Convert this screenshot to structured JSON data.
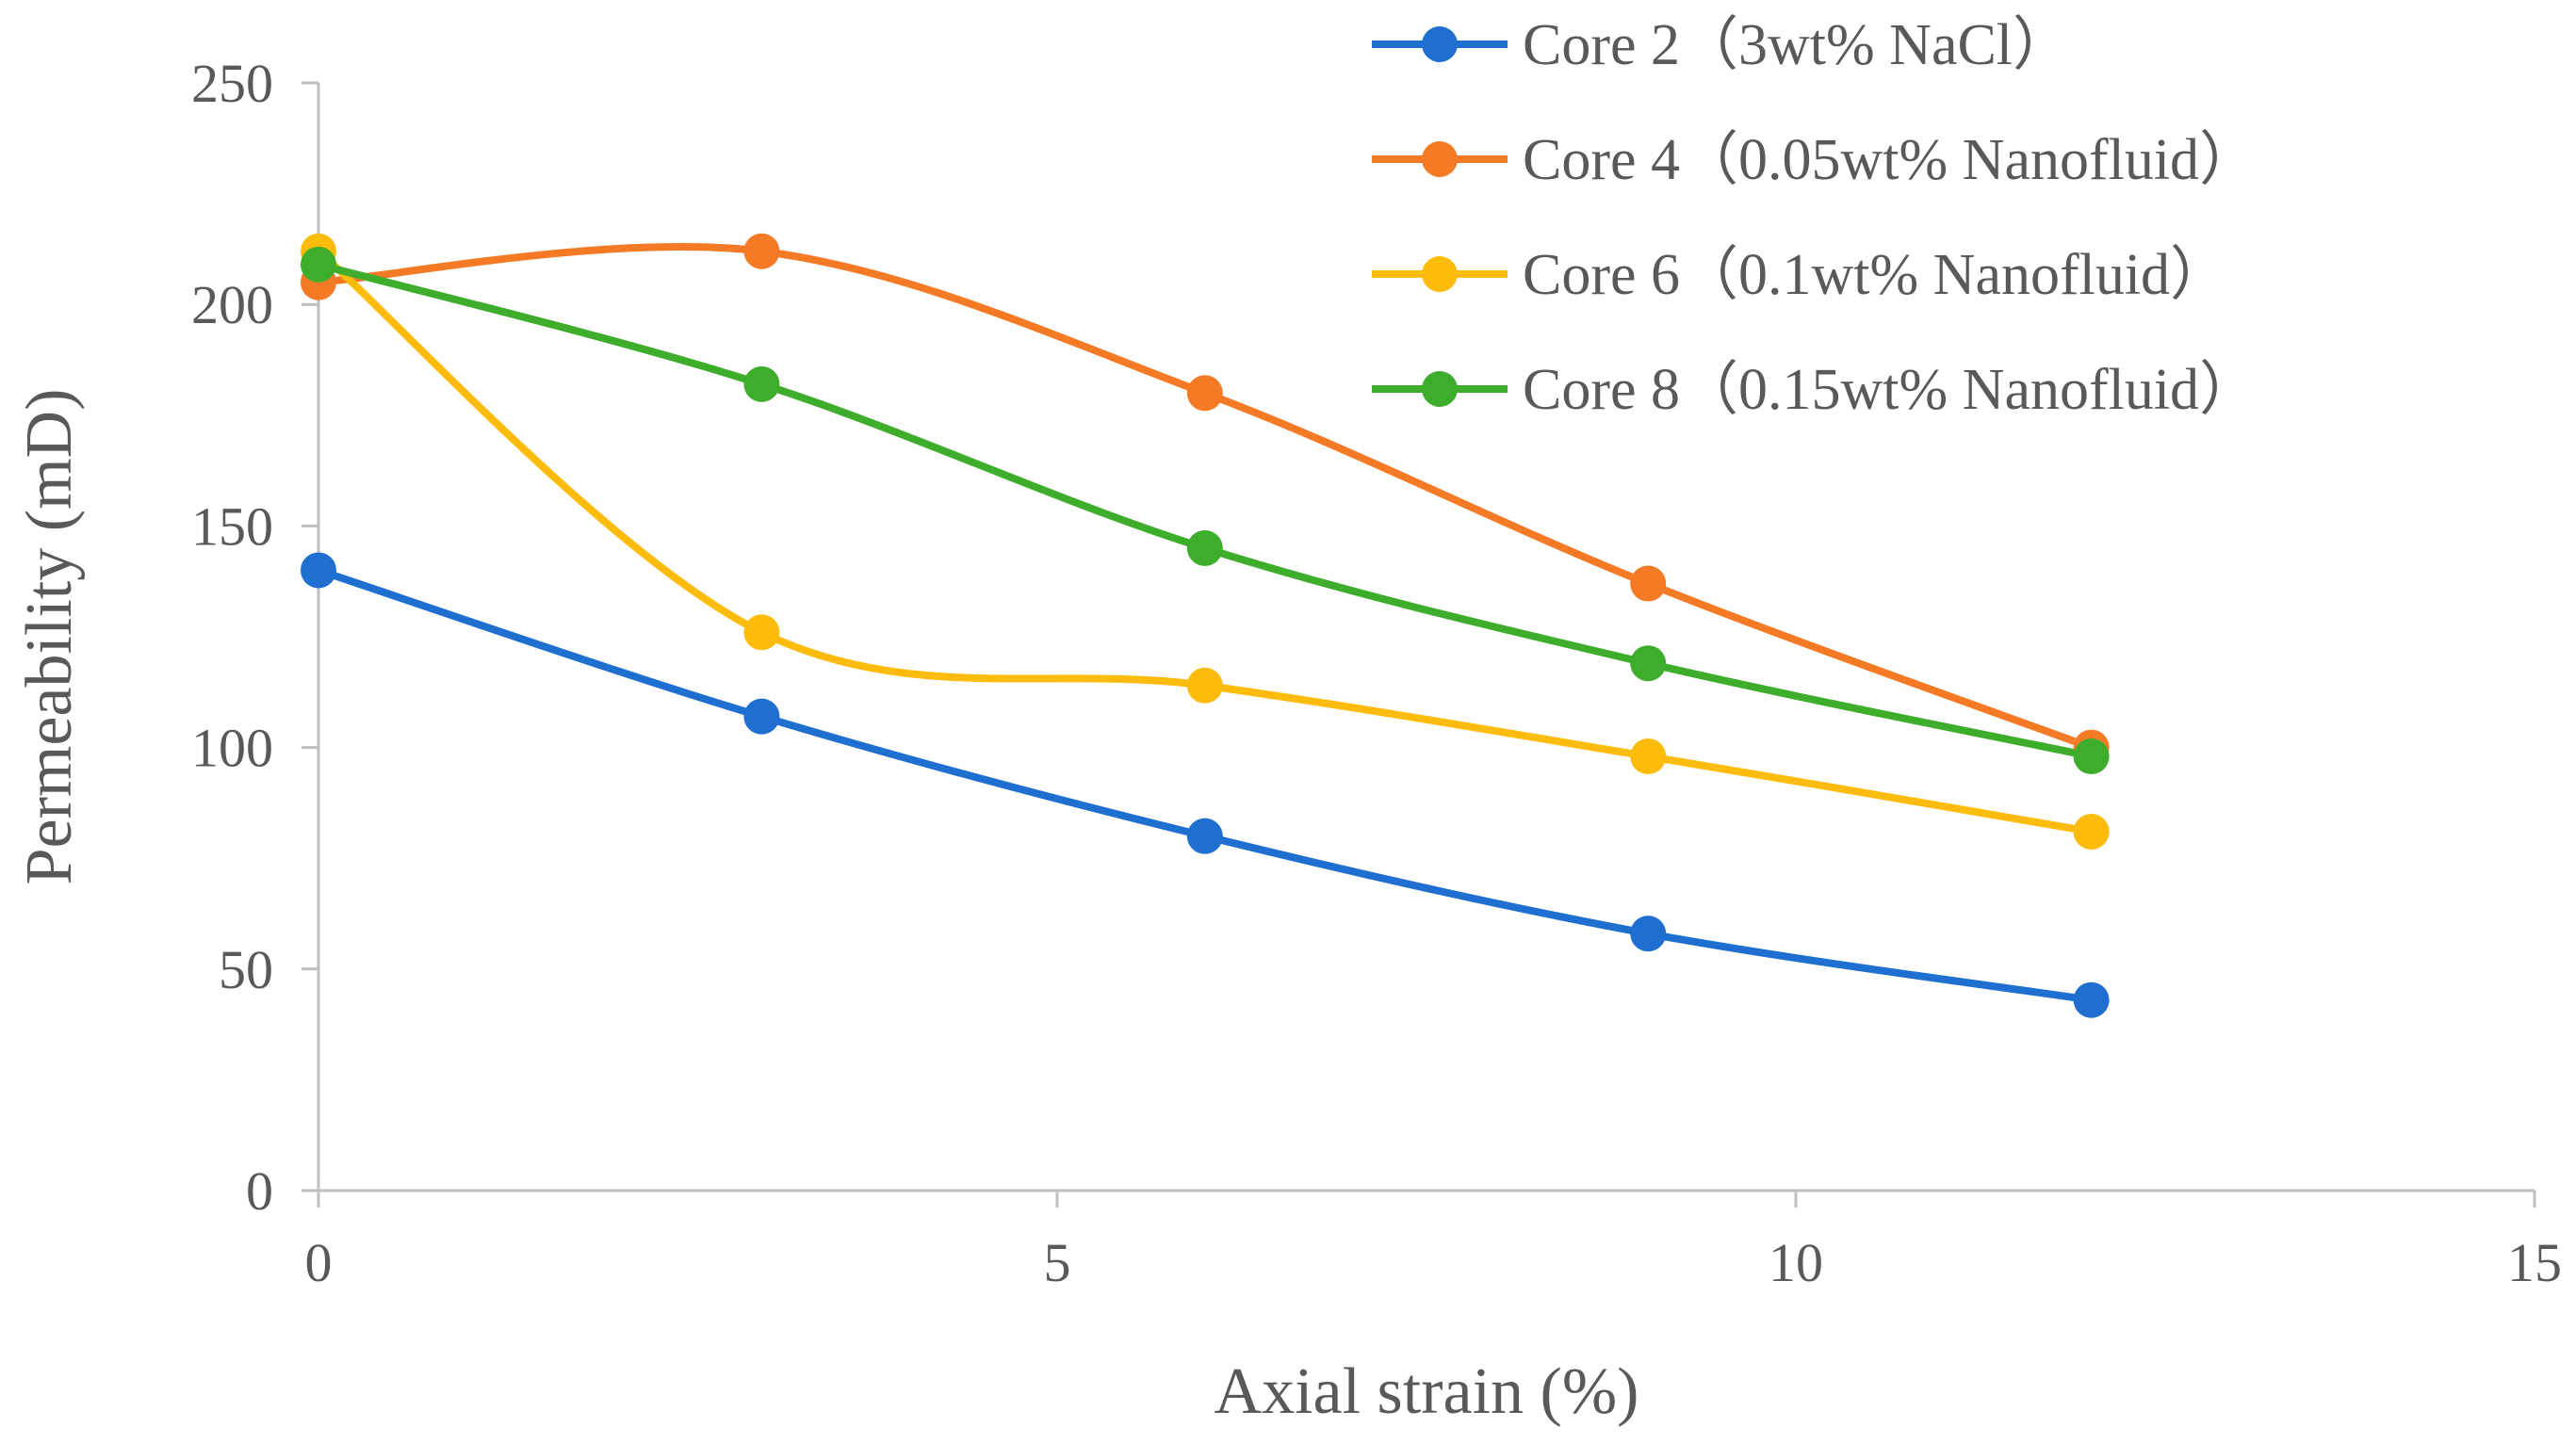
{
  "chart_data": {
    "type": "line",
    "smooth": true,
    "title": "",
    "xlabel": "Axial strain (%)",
    "ylabel": "Permeability (mD)",
    "xlim": [
      0,
      15
    ],
    "ylim": [
      0,
      250
    ],
    "x_ticks": [
      0,
      5,
      10,
      15
    ],
    "y_ticks": [
      0,
      50,
      100,
      150,
      200,
      250
    ],
    "x": [
      0,
      3,
      6,
      9,
      12
    ],
    "legend_position": "top-right",
    "grid": false,
    "series": [
      {
        "name": "Core 2（3wt% NaCl）",
        "color": "#1f6fd1",
        "values": [
          140,
          107,
          80,
          58,
          43
        ]
      },
      {
        "name": "Core 4（0.05wt% Nanofluid）",
        "color": "#f47a25",
        "values": [
          205,
          212,
          180,
          137,
          100
        ]
      },
      {
        "name": "Core 6（0.1wt% Nanofluid）",
        "color": "#fdbb0c",
        "values": [
          212,
          126,
          114,
          98,
          81
        ]
      },
      {
        "name": "Core 8（0.15wt% Nanofluid）",
        "color": "#3fad2c",
        "values": [
          209,
          182,
          145,
          119,
          98
        ]
      }
    ]
  }
}
